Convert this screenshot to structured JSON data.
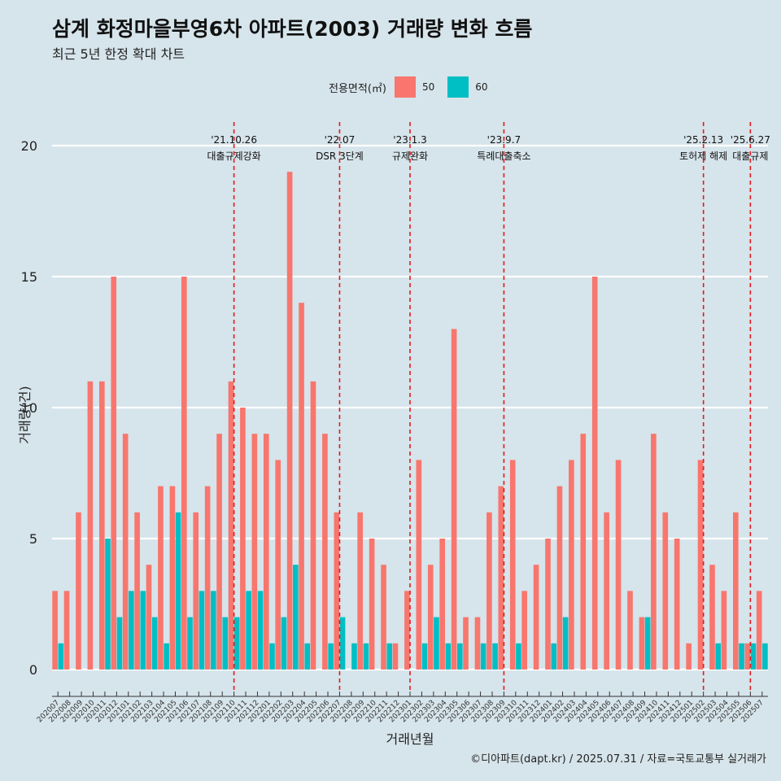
{
  "header": {
    "title": "삼계 화정마을부영6차 아파트(2003) 거래량 변화 흐름",
    "subtitle": "최근 5년 한정 확대 차트"
  },
  "legend": {
    "title": "전용면적(㎡)",
    "items": [
      {
        "label": "50",
        "color": "#f8766d"
      },
      {
        "label": "60",
        "color": "#00bfc4"
      }
    ]
  },
  "caption": "©디아파트(dapt.kr) / 2025.07.31 / 자료=국토교통부 실거래가",
  "chart_data": {
    "type": "bar",
    "xlabel": "거래년월",
    "ylabel": "거래량(건)",
    "ylim": [
      0,
      20
    ],
    "yticks": [
      0,
      5,
      10,
      15,
      20
    ],
    "categories": [
      "202007",
      "202008",
      "202009",
      "202010",
      "202011",
      "202012",
      "202101",
      "202102",
      "202103",
      "202104",
      "202105",
      "202106",
      "202107",
      "202108",
      "202109",
      "202110",
      "202111",
      "202112",
      "202201",
      "202202",
      "202203",
      "202204",
      "202205",
      "202206",
      "202207",
      "202208",
      "202209",
      "202210",
      "202211",
      "202212",
      "202301",
      "202302",
      "202303",
      "202304",
      "202305",
      "202306",
      "202307",
      "202308",
      "202309",
      "202310",
      "202311",
      "202312",
      "202401",
      "202402",
      "202403",
      "202404",
      "202405",
      "202406",
      "202407",
      "202408",
      "202409",
      "202410",
      "202411",
      "202412",
      "202501",
      "202502",
      "202503",
      "202504",
      "202505",
      "202506",
      "202507"
    ],
    "series": [
      {
        "name": "50",
        "color": "#f8766d",
        "values": [
          3,
          3,
          6,
          11,
          11,
          15,
          9,
          6,
          4,
          7,
          7,
          15,
          6,
          7,
          9,
          11,
          10,
          9,
          9,
          8,
          19,
          14,
          11,
          9,
          6,
          0,
          6,
          5,
          4,
          1,
          3,
          8,
          4,
          5,
          13,
          2,
          2,
          6,
          7,
          8,
          3,
          4,
          5,
          7,
          8,
          9,
          15,
          6,
          8,
          3,
          2,
          9,
          6,
          5,
          1,
          8,
          4,
          3,
          6,
          1,
          3
        ]
      },
      {
        "name": "60",
        "color": "#00bfc4",
        "values": [
          1,
          0,
          0,
          0,
          5,
          2,
          3,
          3,
          2,
          1,
          6,
          2,
          3,
          3,
          2,
          2,
          3,
          3,
          1,
          2,
          4,
          1,
          0,
          1,
          2,
          1,
          1,
          0,
          1,
          0,
          0,
          1,
          2,
          1,
          1,
          0,
          1,
          1,
          0,
          1,
          0,
          0,
          1,
          2,
          0,
          0,
          0,
          0,
          0,
          0,
          2,
          0,
          0,
          0,
          0,
          0,
          1,
          0,
          1,
          1,
          1
        ]
      }
    ],
    "annotations": [
      {
        "category": "202110",
        "date": "'21.10.26",
        "label": "대출규제강화"
      },
      {
        "category": "202207",
        "date": "'22.07",
        "label": "DSR 3단계"
      },
      {
        "category": "202301",
        "date": "'23.1.3",
        "label": "규제완화"
      },
      {
        "category": "202309",
        "date": "'23.9.7",
        "label": "특례대출축소"
      },
      {
        "category": "202502",
        "date": "'25.2.13",
        "label": "토허제 해제"
      },
      {
        "category": "202506",
        "date": "'25.6.27",
        "label": "대출규제"
      }
    ]
  }
}
